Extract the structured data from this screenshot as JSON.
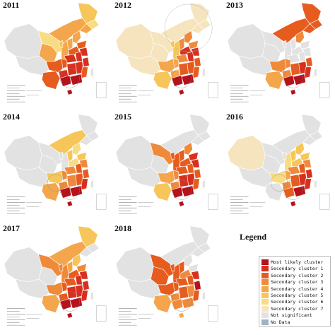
{
  "figure": {
    "panels": [
      {
        "year": "2011"
      },
      {
        "year": "2012"
      },
      {
        "year": "2013"
      },
      {
        "year": "2014"
      },
      {
        "year": "2015"
      },
      {
        "year": "2016"
      },
      {
        "year": "2017"
      },
      {
        "year": "2018"
      }
    ],
    "legend": {
      "title": "Legend",
      "items": [
        {
          "label": "Most likely cluster",
          "color": "#b5121b"
        },
        {
          "label": "Secondary cluster 1",
          "color": "#d7301f"
        },
        {
          "label": "Secondary cluster 2",
          "color": "#e65c1f"
        },
        {
          "label": "Secondary cluster 3",
          "color": "#ef8a3b"
        },
        {
          "label": "Secondary cluster 4",
          "color": "#f3a64b"
        },
        {
          "label": "Secondary cluster 5",
          "color": "#f7c65a"
        },
        {
          "label": "Secondary cluster 6",
          "color": "#f8dc83"
        },
        {
          "label": "Secondary cluster 7",
          "color": "#f6e4be"
        },
        {
          "label": "Not significant",
          "color": "#e2e2e2"
        },
        {
          "label": "No Data",
          "color": "#9fb3c4"
        }
      ]
    }
  }
}
